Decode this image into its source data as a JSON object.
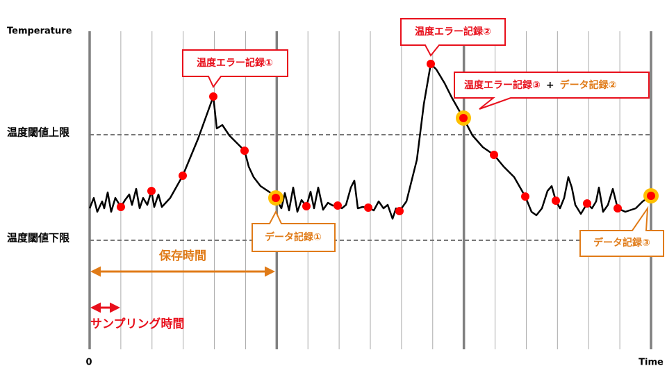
{
  "axes": {
    "y_label": "Temperature",
    "x_origin": "0",
    "x_label": "Time"
  },
  "thresholds": {
    "upper": "温度閾値上限",
    "lower": "温度閾値下限"
  },
  "callouts": {
    "temp_error_1": "温度エラー記録①",
    "temp_error_2": "温度エラー記録②",
    "temp_error_3": "温度エラー記録③",
    "plus": "+",
    "data_record_2": "データ記録②",
    "data_record_1": "データ記録①",
    "data_record_3": "データ記録③"
  },
  "spans": {
    "storage_time": "保存時間",
    "sampling_time": "サンプリング時間"
  }
}
